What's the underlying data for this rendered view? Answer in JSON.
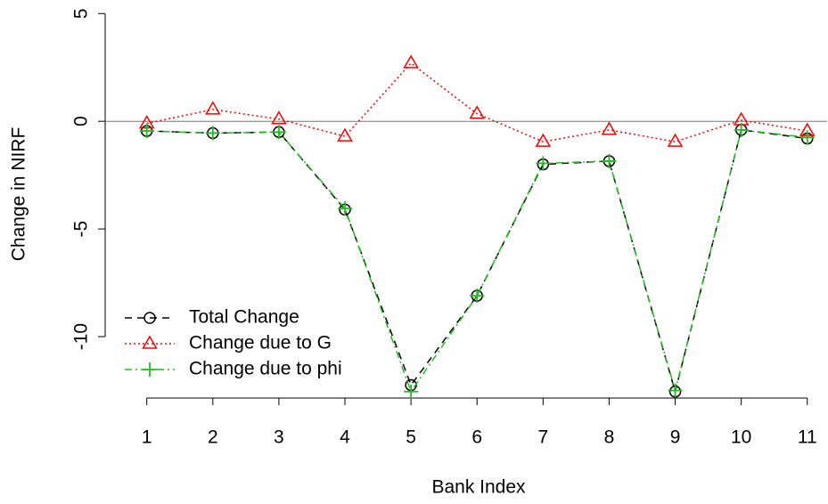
{
  "chart_data": {
    "type": "line",
    "x_label": "Bank Index",
    "y_label": "Change in NIRF",
    "x": [
      1,
      2,
      3,
      4,
      5,
      6,
      7,
      8,
      9,
      10,
      11
    ],
    "series": [
      {
        "name": "Total Change",
        "color": "#000000",
        "marker": "circle",
        "dash": "8,6",
        "values": [
          -0.45,
          -0.55,
          -0.5,
          -4.1,
          -12.25,
          -8.1,
          -2.0,
          -1.85,
          -12.55,
          -0.4,
          -0.8
        ]
      },
      {
        "name": "Change due to G",
        "color": "#ff0000",
        "marker": "triangle",
        "dash": "2,3",
        "values": [
          -0.1,
          0.55,
          0.1,
          -0.7,
          2.7,
          0.35,
          -0.95,
          -0.4,
          -0.95,
          0.05,
          -0.45
        ]
      },
      {
        "name": "Change due to phi",
        "color": "#22bb22",
        "marker": "plus",
        "dash": "8,4,2,4",
        "values": [
          -0.45,
          -0.55,
          -0.5,
          -4.05,
          -12.55,
          -8.1,
          -1.95,
          -1.85,
          -12.5,
          -0.4,
          -0.75
        ]
      }
    ],
    "xlim": [
      0.37,
      11.3
    ],
    "ylim": [
      -12.85,
      5.3
    ],
    "xticks": [
      1,
      2,
      3,
      4,
      5,
      6,
      7,
      8,
      9,
      10,
      11
    ],
    "yticks": [
      -10,
      -5,
      0,
      5
    ],
    "reference_line": 0,
    "legend": "bottomleft"
  }
}
